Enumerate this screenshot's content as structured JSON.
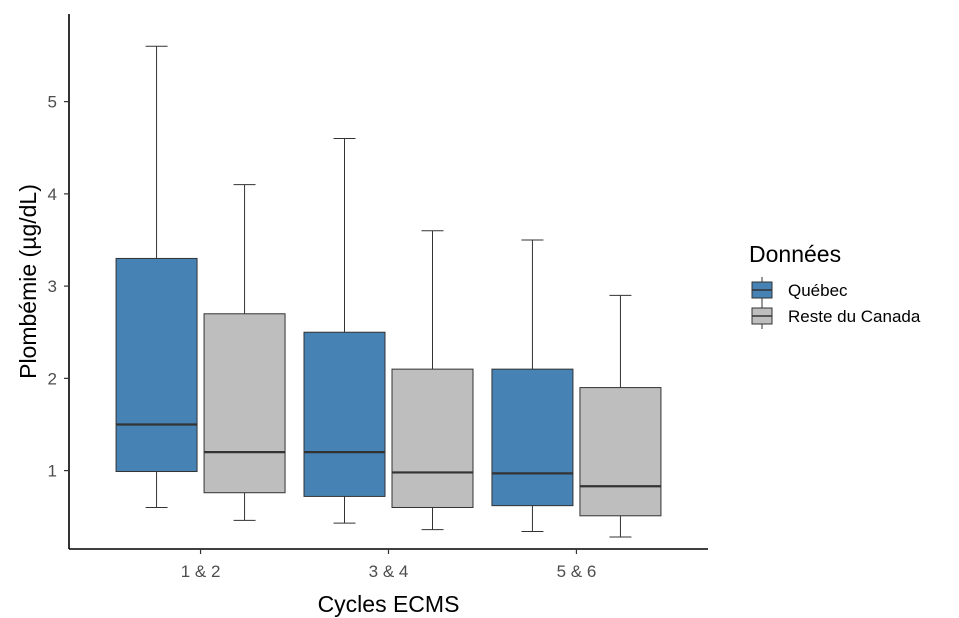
{
  "chart_data": {
    "type": "boxplot",
    "xlabel": "Cycles ECMS",
    "ylabel": "Plombémie (µg/dL)",
    "categories": [
      "1 & 2",
      "3 & 4",
      "5 & 6"
    ],
    "y_ticks": [
      1,
      2,
      3,
      4,
      5
    ],
    "ylim": [
      0.15,
      5.95
    ],
    "grid": false,
    "legend": {
      "title": "Données",
      "position": "right"
    },
    "series": [
      {
        "name": "Québec",
        "color": "#4682b4",
        "boxes": [
          {
            "category": "1 & 2",
            "min": 0.6,
            "q1": 0.99,
            "median": 1.5,
            "q3": 3.3,
            "max": 5.6
          },
          {
            "category": "3 & 4",
            "min": 0.43,
            "q1": 0.72,
            "median": 1.2,
            "q3": 2.5,
            "max": 4.6
          },
          {
            "category": "5 & 6",
            "min": 0.34,
            "q1": 0.62,
            "median": 0.97,
            "q3": 2.1,
            "max": 3.5
          }
        ]
      },
      {
        "name": "Reste du Canada",
        "color": "#bebebe",
        "boxes": [
          {
            "category": "1 & 2",
            "min": 0.46,
            "q1": 0.76,
            "median": 1.2,
            "q3": 2.7,
            "max": 4.1
          },
          {
            "category": "3 & 4",
            "min": 0.36,
            "q1": 0.6,
            "median": 0.98,
            "q3": 2.1,
            "max": 3.6
          },
          {
            "category": "5 & 6",
            "min": 0.28,
            "q1": 0.51,
            "median": 0.83,
            "q3": 1.9,
            "max": 2.9
          }
        ]
      }
    ]
  }
}
